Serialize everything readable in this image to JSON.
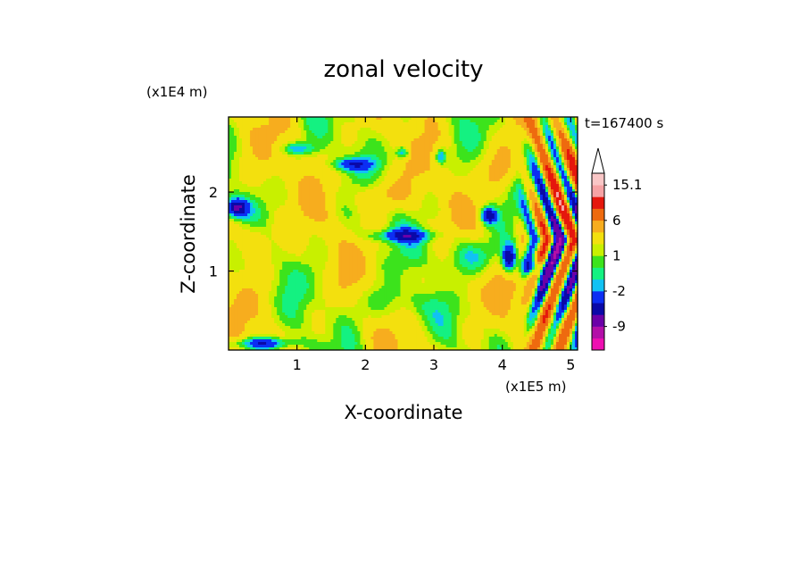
{
  "figure": {
    "title": "zonal velocity",
    "time_label": "t=167400 s"
  },
  "chart_data": {
    "type": "heatmap",
    "title": "zonal velocity",
    "xlabel": "X-coordinate",
    "ylabel": "Z-coordinate",
    "x_unit_label": "(x1E5 m)",
    "y_unit_label": "(x1E4 m)",
    "xlim": [
      0,
      5.1
    ],
    "ylim": [
      0,
      2.95
    ],
    "x_ticks": [
      1,
      2,
      3,
      4,
      5
    ],
    "y_ticks": [
      1,
      2
    ],
    "x_tick_labels": [
      "1",
      "2",
      "3",
      "4",
      "5"
    ],
    "y_tick_labels": [
      "1",
      "2"
    ],
    "time": "t=167400 s",
    "colorbar": {
      "levels": [
        -12,
        -9,
        -6,
        -4,
        -2,
        -1,
        0,
        1,
        2,
        4,
        6,
        9,
        12,
        15.1
      ],
      "colors": [
        "#ee0fb1",
        "#b30fa8",
        "#6b00a8",
        "#0a09a8",
        "#0c2ef3",
        "#11c2f3",
        "#14f181",
        "#3ce31c",
        "#c8f000",
        "#f3e00e",
        "#f7ad1e",
        "#ee6a0f",
        "#e5170d",
        "#f6a2a4",
        "#f9c6c6"
      ],
      "labeled_levels": [
        -9,
        -2,
        1,
        6,
        15.1
      ],
      "tick_labels": [
        "-9",
        "-2",
        "1",
        "6",
        "15.1"
      ],
      "extend_max_color": "#ffffff"
    }
  }
}
